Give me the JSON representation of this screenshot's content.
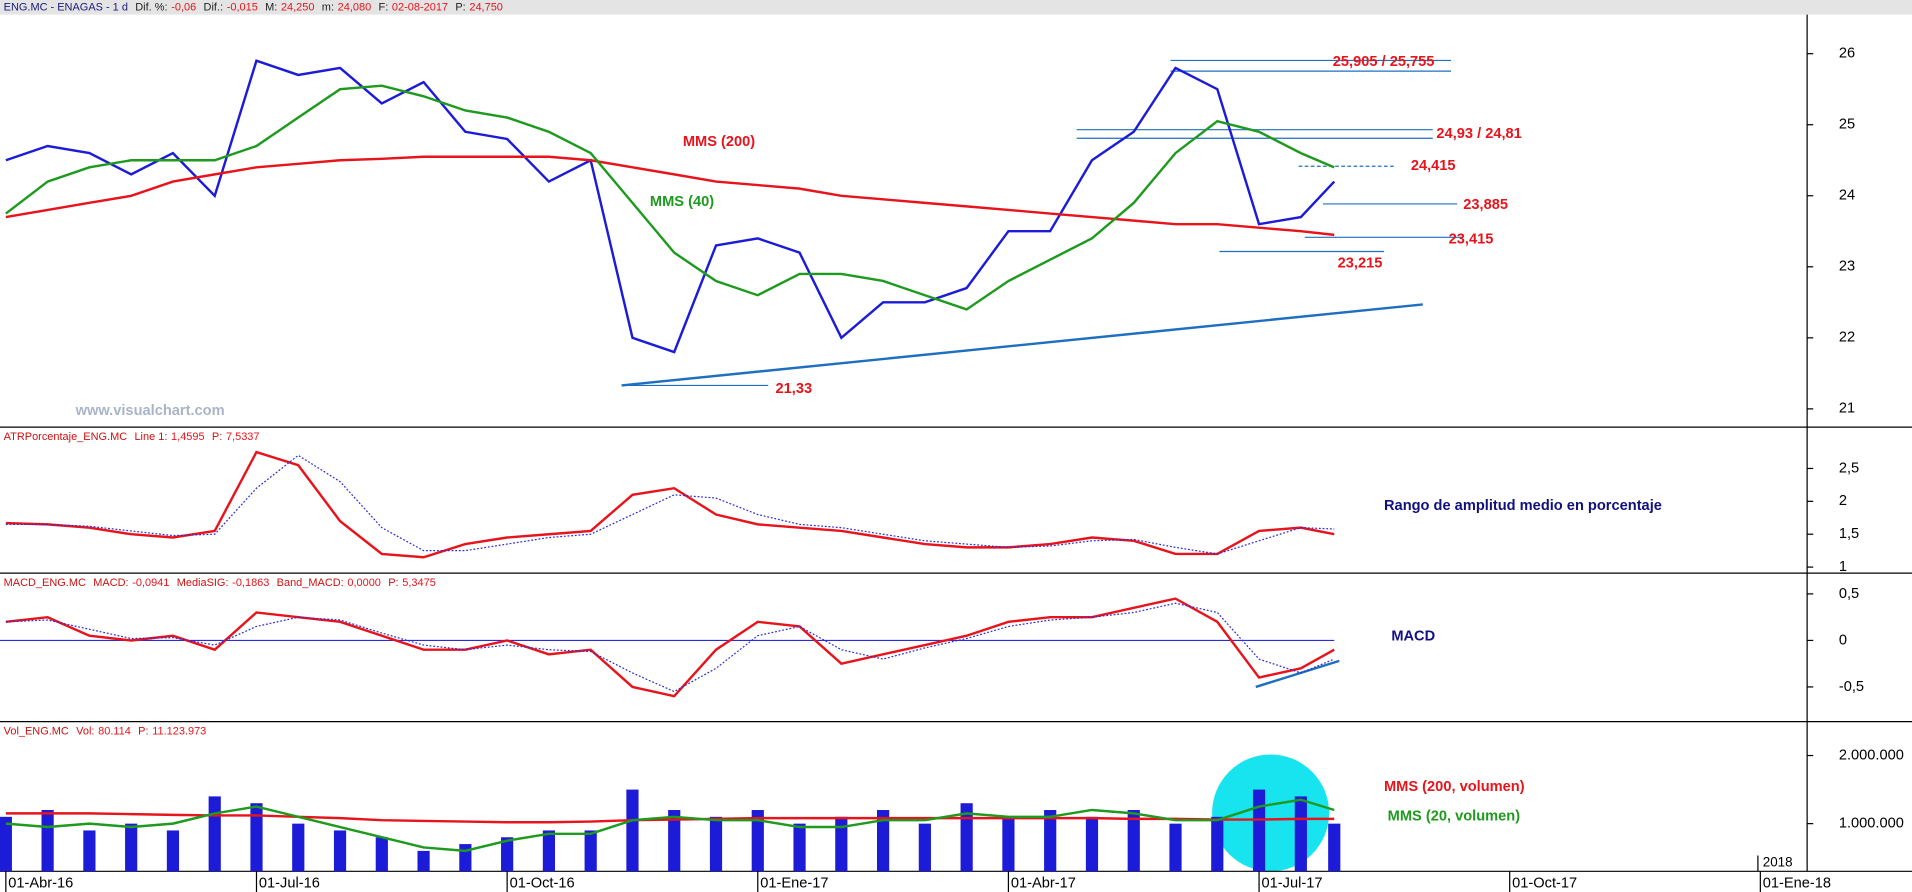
{
  "chart_data": [
    {
      "type": "line",
      "header": {
        "name": "ENG.MC - ENAGAS -  1 d",
        "fields": [
          [
            "Dif. %:",
            "-0,06"
          ],
          [
            "Dif.:",
            "-0,015"
          ],
          [
            "M:",
            "24,250"
          ],
          [
            "m:",
            "24,080"
          ],
          [
            "F:",
            "02-08-2017"
          ],
          [
            "P:",
            "24,750"
          ]
        ]
      },
      "watermark": "www.visualchart.com",
      "x": [
        0,
        0.5,
        1,
        1.5,
        2,
        2.5,
        3,
        3.5,
        4,
        4.5,
        5,
        5.5,
        6,
        6.5,
        7,
        7.5,
        8,
        8.5,
        9,
        9.5,
        10,
        10.5,
        11,
        11.5,
        12,
        12.5,
        13,
        13.5,
        14,
        14.5,
        15,
        15.5,
        15.9
      ],
      "series": [
        {
          "color": "#1c1cd8",
          "values": [
            24.5,
            24.7,
            24.6,
            24.3,
            24.6,
            24.0,
            25.9,
            25.7,
            25.8,
            25.3,
            25.6,
            24.9,
            24.8,
            24.2,
            24.5,
            22.0,
            21.8,
            23.3,
            23.4,
            23.2,
            22.0,
            22.5,
            22.5,
            22.7,
            23.5,
            23.5,
            24.5,
            24.9,
            25.8,
            25.5,
            23.6,
            23.7,
            24.2
          ]
        },
        {
          "name": "MMS (200)",
          "color": "#e8141c",
          "values": [
            23.7,
            23.8,
            23.9,
            24.0,
            24.2,
            24.3,
            24.4,
            24.45,
            24.5,
            24.52,
            24.55,
            24.55,
            24.55,
            24.55,
            24.5,
            24.4,
            24.3,
            24.2,
            24.15,
            24.1,
            24.0,
            23.95,
            23.9,
            23.85,
            23.8,
            23.75,
            23.7,
            23.65,
            23.6,
            23.6,
            23.55,
            23.5,
            23.45
          ]
        },
        {
          "name": "MMS (40)",
          "color": "#1e9a1e",
          "values": [
            23.75,
            24.2,
            24.4,
            24.5,
            24.5,
            24.5,
            24.7,
            25.1,
            25.5,
            25.55,
            25.4,
            25.2,
            25.1,
            24.9,
            24.6,
            23.9,
            23.2,
            22.8,
            22.6,
            22.9,
            22.9,
            22.8,
            22.6,
            22.4,
            22.8,
            23.1,
            23.4,
            23.9,
            24.6,
            25.05,
            24.9,
            24.6,
            24.4
          ]
        }
      ],
      "levels": [
        {
          "label": "25,905 / 25,755",
          "values": [
            25.905,
            25.755
          ]
        },
        {
          "label": "24,93 / 24,81",
          "values": [
            24.93,
            24.81
          ]
        },
        {
          "label": "24,415",
          "values": [
            24.415
          ],
          "dashed": true
        },
        {
          "label": "23,885",
          "values": [
            23.885
          ]
        },
        {
          "label": "23,415",
          "values": [
            23.415
          ]
        },
        {
          "label": "23,215",
          "values": [
            23.215
          ]
        },
        {
          "label": "21,33",
          "values": [
            21.33
          ]
        }
      ],
      "trendline": {
        "x": [
          7.37,
          16.96
        ],
        "values": [
          21.33,
          22.47
        ],
        "color": "#1f6fc0"
      },
      "xlim": [
        -0.07,
        21.56
      ],
      "ylim": [
        20.76,
        26.55
      ],
      "yticks": [
        21,
        22,
        23,
        24,
        25,
        26
      ]
    },
    {
      "type": "line",
      "header": {
        "name": "ATRPorcentaje_ENG.MC",
        "fields": [
          [
            "Line 1:",
            "1,4595"
          ],
          [
            "P:",
            "7,5337"
          ]
        ]
      },
      "note": "Rango de amplitud medio en porcentaje",
      "x": [
        0,
        0.5,
        1,
        1.5,
        2,
        2.5,
        3,
        3.5,
        4,
        4.5,
        5,
        5.5,
        6,
        6.5,
        7,
        7.5,
        8,
        8.5,
        9,
        9.5,
        10,
        10.5,
        11,
        11.5,
        12,
        12.5,
        13,
        13.5,
        14,
        14.5,
        15,
        15.5,
        15.9
      ],
      "series": [
        {
          "color": "#e8141c",
          "values": [
            1.67,
            1.65,
            1.6,
            1.5,
            1.45,
            1.55,
            2.75,
            2.55,
            1.7,
            1.2,
            1.15,
            1.35,
            1.45,
            1.5,
            1.55,
            2.1,
            2.2,
            1.8,
            1.65,
            1.6,
            1.55,
            1.45,
            1.35,
            1.3,
            1.3,
            1.35,
            1.45,
            1.4,
            1.2,
            1.2,
            1.55,
            1.6,
            1.5
          ]
        },
        {
          "color": "#2a2ae0",
          "dotted": true,
          "values": [
            1.65,
            1.65,
            1.62,
            1.55,
            1.48,
            1.5,
            2.2,
            2.7,
            2.3,
            1.6,
            1.25,
            1.25,
            1.35,
            1.45,
            1.5,
            1.8,
            2.1,
            2.05,
            1.8,
            1.65,
            1.6,
            1.5,
            1.4,
            1.35,
            1.3,
            1.32,
            1.4,
            1.42,
            1.3,
            1.2,
            1.4,
            1.6,
            1.58
          ]
        }
      ],
      "xlim": [
        -0.07,
        21.56
      ],
      "ylim": [
        0.926,
        3.11
      ],
      "yticks": [
        {
          "value": 2.5,
          "label": "2,5"
        },
        2,
        {
          "value": 1.5,
          "label": "1,5"
        },
        1
      ]
    },
    {
      "type": "line",
      "header": {
        "name": "MACD_ENG.MC",
        "fields": [
          [
            "MACD:",
            "-0,0941"
          ],
          [
            "MediaSIG:",
            "-0,1863"
          ],
          [
            "Band_MACD:",
            "0,0000"
          ],
          [
            "P:",
            "5,3475"
          ]
        ]
      },
      "note": "MACD",
      "band": 0,
      "x": [
        0,
        0.5,
        1,
        1.5,
        2,
        2.5,
        3,
        3.5,
        4,
        4.5,
        5,
        5.5,
        6,
        6.5,
        7,
        7.5,
        8,
        8.5,
        9,
        9.5,
        10,
        10.5,
        11,
        11.5,
        12,
        12.5,
        13,
        13.5,
        14,
        14.5,
        15,
        15.5,
        15.9
      ],
      "series": [
        {
          "color": "#e8141c",
          "values": [
            0.2,
            0.25,
            0.05,
            0.0,
            0.05,
            -0.1,
            0.3,
            0.25,
            0.2,
            0.05,
            -0.1,
            -0.1,
            0.0,
            -0.15,
            -0.1,
            -0.5,
            -0.6,
            -0.1,
            0.2,
            0.15,
            -0.25,
            -0.15,
            -0.05,
            0.05,
            0.2,
            0.25,
            0.25,
            0.35,
            0.45,
            0.2,
            -0.4,
            -0.3,
            -0.1
          ]
        },
        {
          "color": "#2a2ae0",
          "dotted": true,
          "values": [
            0.2,
            0.22,
            0.12,
            0.02,
            0.03,
            -0.05,
            0.15,
            0.25,
            0.22,
            0.08,
            -0.05,
            -0.1,
            -0.05,
            -0.1,
            -0.12,
            -0.35,
            -0.55,
            -0.3,
            0.05,
            0.15,
            -0.1,
            -0.2,
            -0.08,
            0.02,
            0.15,
            0.22,
            0.25,
            0.3,
            0.4,
            0.3,
            -0.2,
            -0.35,
            -0.2
          ]
        }
      ],
      "trendline": {
        "x": [
          14.96,
          15.96
        ],
        "values": [
          -0.5,
          -0.22
        ],
        "color": "#1f6fc0"
      },
      "xlim": [
        -0.07,
        21.56
      ],
      "ylim": [
        -0.86,
        0.71
      ],
      "yticks": [
        {
          "value": 0.5,
          "label": "0,5"
        },
        0,
        {
          "value": -0.5,
          "label": "-0,5"
        }
      ]
    },
    {
      "type": "bar",
      "header": {
        "name": "Vol_ENG.MC",
        "fields": [
          [
            "Vol:",
            "80.114"
          ],
          [
            "P:",
            "11.123.973"
          ]
        ]
      },
      "color": "#1c1cd8",
      "x": [
        0,
        0.5,
        1,
        1.5,
        2,
        2.5,
        3,
        3.5,
        4,
        4.5,
        5,
        5.5,
        6,
        6.5,
        7,
        7.5,
        8,
        8.5,
        9,
        9.5,
        10,
        10.5,
        11,
        11.5,
        12,
        12.5,
        13,
        13.5,
        14,
        14.5,
        15,
        15.5,
        15.9
      ],
      "values": [
        1100000,
        1200000,
        900000,
        1000000,
        900000,
        1400000,
        1300000,
        1000000,
        900000,
        800000,
        600000,
        700000,
        800000,
        900000,
        900000,
        1500000,
        1200000,
        1100000,
        1200000,
        1000000,
        1100000,
        1200000,
        1000000,
        1300000,
        1100000,
        1200000,
        1100000,
        1200000,
        1000000,
        1100000,
        1500000,
        1400000,
        1000000
      ],
      "series": [
        {
          "name": "MMS (200, volumen)",
          "color": "#e8141c",
          "values": [
            1150000,
            1150000,
            1150000,
            1140000,
            1130000,
            1120000,
            1120000,
            1100000,
            1080000,
            1050000,
            1040000,
            1030000,
            1020000,
            1020000,
            1030000,
            1050000,
            1060000,
            1070000,
            1080000,
            1080000,
            1080000,
            1080000,
            1080000,
            1080000,
            1080000,
            1080000,
            1080000,
            1070000,
            1070000,
            1060000,
            1060000,
            1070000,
            1070000
          ]
        },
        {
          "name": "MMS (20, volumen)",
          "color": "#1e9a1e",
          "values": [
            1000000,
            950000,
            1000000,
            950000,
            1000000,
            1150000,
            1250000,
            1100000,
            950000,
            800000,
            650000,
            600000,
            750000,
            850000,
            850000,
            1050000,
            1100000,
            1050000,
            1050000,
            950000,
            950000,
            1050000,
            1050000,
            1150000,
            1100000,
            1100000,
            1200000,
            1150000,
            1050000,
            1050000,
            1250000,
            1350000,
            1200000
          ]
        }
      ],
      "xlim": [
        -0.07,
        21.56
      ],
      "ylim": [
        300000,
        2480000
      ],
      "yticks": [
        {
          "value": 2000000,
          "label": "2.000.000"
        },
        {
          "value": 1000000,
          "label": "1.000.000"
        }
      ],
      "xticks": [
        {
          "value": 0,
          "label": "01-Abr-16"
        },
        {
          "value": 3,
          "label": "01-Jul-16"
        },
        {
          "value": 6,
          "label": "01-Oct-16"
        },
        {
          "value": 9,
          "label": "01-Ene-17"
        },
        {
          "value": 12,
          "label": "01-Abr-17"
        },
        {
          "value": 15,
          "label": "01-Jul-17"
        },
        {
          "value": 18,
          "label": "01-Oct-17"
        },
        {
          "value": 21,
          "label": "01-Ene-18"
        }
      ],
      "year_marker": {
        "value": 21,
        "label": "2018"
      }
    }
  ]
}
